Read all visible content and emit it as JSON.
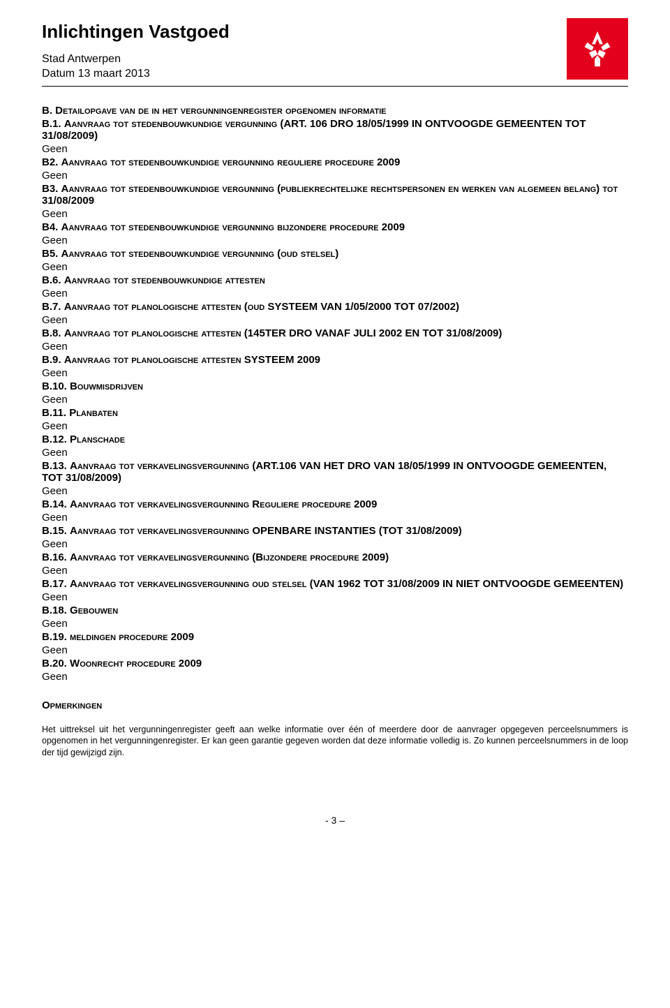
{
  "header": {
    "title": "Inlichtingen Vastgoed",
    "org": "Stad Antwerpen",
    "date": "Datum 13 maart 2013"
  },
  "logo": {
    "bg_color": "#e3001d",
    "fg_color": "#ffffff"
  },
  "main_title_prefix": "B. ",
  "main_title_sc": "Detailopgave van de in het vergunningenregister opgenomen informatie",
  "sections": [
    {
      "prefix": "B.1. ",
      "sc": "Aanvraag tot stedenbouwkundige vergunning",
      "suffix": " (ART. 106 DRO 18/05/1999 IN ONTVOOGDE GEMEENTEN TOT 31/08/2009)",
      "val": "Geen"
    },
    {
      "prefix": "B2. ",
      "sc": "Aanvraag tot stedenbouwkundige vergunning reguliere procedure",
      "suffix": " 2009",
      "val": "Geen"
    },
    {
      "prefix": "B3. ",
      "sc": "Aanvraag tot stedenbouwkundige vergunning (publiekrechtelijke rechtspersonen en werken van algemeen belang) tot",
      "suffix": " 31/08/2009",
      "val": "Geen"
    },
    {
      "prefix": "B4. ",
      "sc": "Aanvraag tot stedenbouwkundige vergunning bijzondere procedure",
      "suffix": " 2009",
      "val": "Geen"
    },
    {
      "prefix": "B5. ",
      "sc": "Aanvraag tot stedenbouwkundige vergunning (oud stelsel)",
      "suffix": "",
      "val": "Geen"
    },
    {
      "prefix": "B.6. ",
      "sc": "Aanvraag tot stedenbouwkundige attesten",
      "suffix": "",
      "val": "Geen"
    },
    {
      "prefix": "B.7. ",
      "sc": "Aanvraag tot planologische attesten (oud",
      "suffix": " SYSTEEM VAN 1/05/2000 TOT 07/2002)",
      "val": "Geen"
    },
    {
      "prefix": "B.8. ",
      "sc": "Aanvraag tot planologische attesten",
      "suffix": " (145TER DRO VANAF JULI 2002 EN TOT 31/08/2009)",
      "val": "Geen"
    },
    {
      "prefix": "B.9. ",
      "sc": "Aanvraag tot planologische attesten",
      "suffix": " SYSTEEM 2009",
      "val": "Geen"
    },
    {
      "prefix": "B.10. ",
      "sc": "Bouwmisdrijven",
      "suffix": "",
      "val": "Geen"
    },
    {
      "prefix": "B.11. ",
      "sc": "Planbaten",
      "suffix": "",
      "val": "Geen"
    },
    {
      "prefix": "B.12. ",
      "sc": "Planschade",
      "suffix": "",
      "val": "Geen"
    },
    {
      "prefix": "B.13. ",
      "sc": "Aanvraag tot verkavelingsvergunning",
      "suffix": " (ART.106 VAN HET DRO VAN 18/05/1999 IN ONTVOOGDE GEMEENTEN, TOT 31/08/2009)",
      "val": "Geen"
    },
    {
      "prefix": "B.14. ",
      "sc": "Aanvraag tot verkavelingsvergunning Reguliere procedure",
      "suffix": " 2009",
      "val": "Geen"
    },
    {
      "prefix": "B.15. ",
      "sc": "Aanvraag tot verkavelingsvergunning",
      "suffix": " OPENBARE INSTANTIES (TOT 31/08/2009)",
      "val": "Geen"
    },
    {
      "prefix": "B.16. ",
      "sc": "Aanvraag tot verkavelingsvergunning (Bijzondere procedure",
      "suffix": " 2009)",
      "val": "Geen"
    },
    {
      "prefix": "B.17. ",
      "sc": "Aanvraag tot verkavelingsvergunning oud stelsel",
      "suffix": " (VAN 1962 TOT 31/08/2009 IN NIET ONTVOOGDE GEMEENTEN)",
      "val": "Geen"
    },
    {
      "prefix": "B.18. ",
      "sc": "Gebouwen",
      "suffix": "",
      "val": "Geen"
    },
    {
      "prefix": "B.19. ",
      "sc": "meldingen procedure",
      "suffix": " 2009",
      "val": "Geen"
    },
    {
      "prefix": "B.20. ",
      "sc": "Woonrecht procedure",
      "suffix": " 2009",
      "val": "Geen"
    }
  ],
  "opmerkingen": {
    "heading": "Opmerkingen",
    "para": "Het uittreksel uit het vergunningenregister geeft aan welke informatie over één of meerdere door de aanvrager opgegeven perceelsnummers is opgenomen in het vergunningenregister. Er kan geen garantie gegeven worden dat deze informatie volledig is. Zo kunnen perceelsnummers in de loop der tijd gewijzigd zijn."
  },
  "page_number": "- 3 –"
}
